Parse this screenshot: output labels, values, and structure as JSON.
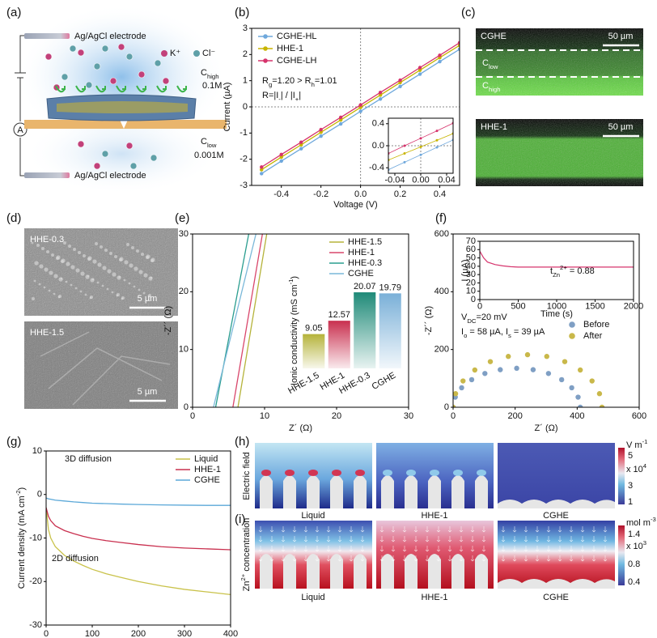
{
  "panel_labels": [
    "(a)",
    "(b)",
    "(c)",
    "(d)",
    "(e)",
    "(f)",
    "(g)",
    "(h)",
    "(i)"
  ],
  "panel_a": {
    "electrode_top": "Ag/AgCl electrode",
    "electrode_bottom": "Ag/AgCl electrode",
    "cation": "K⁺",
    "anion": "Cl⁻",
    "c_high": [
      "C",
      {
        "sub": "high"
      }
    ],
    "c_high_value": "0.1M",
    "c_low": [
      "C",
      {
        "sub": "low"
      }
    ],
    "c_low_value": "0.001M",
    "ammeter": "A"
  },
  "panel_c": {
    "top_label": "CGHE",
    "top_scale": "50 µm",
    "c_low": [
      "C",
      {
        "sub": "low"
      }
    ],
    "c_high": [
      "C",
      {
        "sub": "high"
      }
    ],
    "bottom_label": "HHE-1",
    "bottom_scale": "50 µm"
  },
  "panel_d": {
    "top_label": "HHE-0.3",
    "top_scale": "5 µm",
    "bottom_label": "HHE-1.5",
    "bottom_scale": "5 µm"
  },
  "panel_h": {
    "row_label": "Electric field",
    "columns": [
      "Liquid",
      "HHE-1",
      "CGHE"
    ],
    "unit": [
      "V m",
      {
        "sup": "-1"
      }
    ],
    "scale_max": "5",
    "scale_exp": [
      "x 10",
      {
        "sup": "4"
      }
    ],
    "scale_mid": "3",
    "scale_min": "1"
  },
  "panel_i": {
    "row_label": [
      "Zn",
      {
        "sup": "2+"
      },
      " concentration"
    ],
    "columns": [
      "Liquid",
      "HHE-1",
      "CGHE"
    ],
    "unit": [
      "mol m",
      {
        "sup": "-3"
      }
    ],
    "scale_max": "1.4",
    "scale_exp": [
      "x 10",
      {
        "sup": "3"
      }
    ],
    "scale_mid": "0.8",
    "scale_min": "0.4"
  },
  "chart_data": [
    {
      "type": "line",
      "markers": true,
      "zero_lines": true,
      "legend": "upper left",
      "xlabel": "Voltage (V)",
      "ylabel": "Current (µA)",
      "xlim": [
        -0.55,
        0.5
      ],
      "xticks": [
        -0.4,
        -0.2,
        {
          "value": 0,
          "label": "0.0"
        },
        0.2,
        0.4
      ],
      "ylim": [
        -3,
        3
      ],
      "yticks": [
        -3,
        -2,
        -1,
        0,
        1,
        2,
        3
      ],
      "annotations": [
        [
          "R",
          {
            "sub": "g"
          },
          "=1.20 > R",
          {
            "sub": "h"
          },
          "=1.01"
        ],
        [
          "R=|I",
          {
            "sub": "-"
          },
          "| / |I",
          {
            "sub": "+"
          },
          "|"
        ]
      ],
      "x": [
        -0.5,
        -0.4,
        -0.3,
        -0.2,
        -0.1,
        0,
        0.1,
        0.2,
        0.3,
        0.4,
        0.5
      ],
      "series": [
        {
          "name": "CGHE-HL",
          "color": "#6fa8dc",
          "values": [
            -2.55,
            -2.07,
            -1.6,
            -1.12,
            -0.65,
            -0.17,
            0.3,
            0.78,
            1.25,
            1.73,
            2.2
          ]
        },
        {
          "name": "HHE-1",
          "color": "#c8b400",
          "values": [
            -2.4,
            -1.92,
            -1.45,
            -0.97,
            -0.5,
            -0.02,
            0.45,
            0.93,
            1.4,
            1.88,
            2.35
          ]
        },
        {
          "name": "CGHE-LH",
          "color": "#d6336c",
          "values": [
            -2.3,
            -1.82,
            -1.35,
            -0.87,
            -0.4,
            0.07,
            0.55,
            1.02,
            1.5,
            1.97,
            2.45
          ]
        }
      ]
    },
    {
      "type": "line",
      "markers": true,
      "zero_lines": true,
      "xlim": [
        -0.05,
        0.05
      ],
      "xticks": [
        -0.04,
        {
          "value": 0,
          "label": "0.00"
        },
        0.04
      ],
      "ylim": [
        -0.5,
        0.5
      ],
      "yticks": [
        -0.4,
        {
          "value": 0,
          "label": "0.0"
        },
        0.4
      ],
      "x": [
        -0.05,
        -0.025,
        0,
        0.025,
        0.05
      ],
      "series": [
        {
          "color": "#6fa8dc",
          "values": [
            -0.435,
            -0.3,
            -0.165,
            -0.03,
            0.105
          ]
        },
        {
          "color": "#c8b400",
          "values": [
            -0.26,
            -0.14,
            -0.02,
            0.1,
            0.22
          ]
        },
        {
          "color": "#d6336c",
          "values": [
            -0.14,
            0,
            0.135,
            0.27,
            0.41
          ]
        }
      ]
    },
    {
      "type": "line",
      "legend": "upper right",
      "xlabel": "Z´ (Ω)",
      "ylabel": "-Z´´ (Ω)",
      "xlim": [
        0,
        30
      ],
      "xticks": [
        0,
        10,
        20,
        30
      ],
      "ylim": [
        0,
        30
      ],
      "yticks": [
        0,
        10,
        20,
        30
      ],
      "series": [
        {
          "name": "HHE-1.5",
          "color": "#b5b33a",
          "x": [
            6.3,
            10.3
          ],
          "values": [
            0,
            30
          ]
        },
        {
          "name": "HHE-1",
          "color": "#d9466b",
          "x": [
            5.6,
            9.7
          ],
          "values": [
            0,
            30
          ]
        },
        {
          "name": "HHE-0.3",
          "color": "#2a9d8f",
          "x": [
            3.2,
            7.8
          ],
          "values": [
            0,
            30
          ]
        },
        {
          "name": "CGHE",
          "color": "#7ab8d9",
          "x": [
            2.9,
            8.8
          ],
          "values": [
            0,
            30
          ]
        }
      ]
    },
    {
      "type": "bar",
      "ylabel": [
        "Ionic conductivity (mS cm",
        {
          "sup": "-1"
        },
        ")"
      ],
      "categories": [
        "HHE-1.5",
        "HHE-1",
        "HHE-0.3",
        "CGHE"
      ],
      "values": [
        9.05,
        12.57,
        20.07,
        19.79
      ],
      "colors": [
        "#b5b33a",
        "#c9304f",
        "#1f8a78",
        "#7ab0d8"
      ],
      "ylim": [
        0,
        22
      ]
    },
    {
      "type": "scatter",
      "legend": "center right",
      "xlabel": "Z´ (Ω)",
      "ylabel": "-Z´´ (Ω)",
      "xlim": [
        0,
        600
      ],
      "xticks": [
        0,
        200,
        400,
        600
      ],
      "ylim": [
        0,
        600
      ],
      "yticks": [
        0,
        200,
        400,
        600
      ],
      "annotations": [
        [
          "V",
          {
            "sub": "DC"
          },
          "=20 mV"
        ],
        [
          "I",
          {
            "sub": "o"
          },
          " = 58 µA, I",
          {
            "sub": "s"
          },
          " = 39 µA"
        ]
      ],
      "series": [
        {
          "name": "Before",
          "color": "#7f9fc4",
          "x": [
            0,
            7,
            27.5,
            60,
            102.5,
            152,
            205,
            258,
            307.5,
            350,
            382.5,
            403,
            410
          ],
          "values": [
            0,
            35,
            67.5,
            95.5,
            117,
            130,
            135,
            130,
            117,
            95.5,
            67.5,
            35,
            0
          ]
        },
        {
          "name": "After",
          "color": "#c9b84a",
          "x": [
            0,
            8,
            32,
            70,
            120,
            178,
            240,
            302,
            360,
            410,
            448,
            472,
            480
          ],
          "values": [
            0,
            47,
            91,
            129,
            158,
            176,
            182,
            176,
            158,
            129,
            91,
            47,
            0
          ]
        }
      ]
    },
    {
      "type": "line",
      "xlabel": "Time (s)",
      "ylabel": "I (µA)",
      "xlim": [
        0,
        2000
      ],
      "xticks": [
        0,
        500,
        1000,
        1500,
        2000
      ],
      "ylim": [
        0,
        70
      ],
      "yticks": [
        0,
        10,
        20,
        30,
        40,
        50,
        60,
        70
      ],
      "annotations": [
        [
          "t",
          {
            "sub": "Zn"
          },
          {
            "sup": "2+"
          },
          " = 0.88"
        ]
      ],
      "x": [
        0,
        50,
        100,
        200,
        300,
        400,
        500,
        700,
        1000,
        1500,
        2000
      ],
      "series": [
        {
          "color": "#d6336c",
          "values": [
            58,
            50,
            45,
            42,
            40.5,
            39.5,
            39,
            39,
            39,
            39,
            39
          ]
        }
      ]
    },
    {
      "type": "line",
      "legend": "upper right",
      "xlabel": "Time (s)",
      "ylabel": [
        "Current density (mA cm",
        {
          "sup": "-2"
        },
        ")"
      ],
      "xlim": [
        0,
        400
      ],
      "xticks": [
        0,
        100,
        200,
        300,
        400
      ],
      "ylim": [
        -30,
        10
      ],
      "yticks": [
        -30,
        -20,
        -10,
        0,
        10
      ],
      "annotations": [
        "3D diffusion",
        "2D diffusion"
      ],
      "x": [
        0,
        5,
        10,
        20,
        40,
        60,
        80,
        100,
        130,
        160,
        200,
        250,
        300,
        350,
        400
      ],
      "series": [
        {
          "name": "Liquid",
          "color": "#c9c24a",
          "values": [
            -3,
            -8,
            -10,
            -12,
            -14,
            -15.3,
            -16.3,
            -17.2,
            -18.2,
            -19,
            -20,
            -21,
            -21.8,
            -22.4,
            -23
          ]
        },
        {
          "name": "HHE-1",
          "color": "#c9304f",
          "values": [
            -3,
            -5,
            -6,
            -7.2,
            -8.3,
            -9,
            -9.6,
            -10.1,
            -10.6,
            -11,
            -11.5,
            -12,
            -12.3,
            -12.5,
            -12.7
          ]
        },
        {
          "name": "CGHE",
          "color": "#5ba8d8",
          "values": [
            -0.8,
            -1,
            -1.1,
            -1.3,
            -1.5,
            -1.7,
            -1.85,
            -2,
            -2.1,
            -2.2,
            -2.3,
            -2.4,
            -2.45,
            -2.5,
            -2.5
          ]
        }
      ]
    }
  ]
}
